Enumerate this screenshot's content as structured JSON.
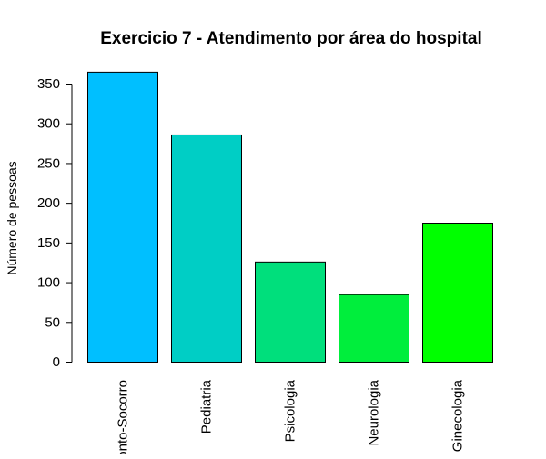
{
  "chart_data": {
    "type": "bar",
    "title": "Exercicio 7 - Atendimento por área do hospital",
    "xlabel": "",
    "ylabel": "Número de pessoas",
    "categories": [
      "Pronto-Socorro",
      "Pediatria",
      "Psicologia",
      "Neurologia",
      "Ginecologia"
    ],
    "values": [
      365,
      286,
      126,
      85,
      175
    ],
    "colors": [
      "#00BFFF",
      "#00CEC5",
      "#00DF7C",
      "#00EE3C",
      "#00FF00"
    ],
    "ylim": [
      0,
      375
    ],
    "yticks": [
      0,
      50,
      100,
      150,
      200,
      250,
      300,
      350
    ],
    "grid": false,
    "legend": "none"
  }
}
